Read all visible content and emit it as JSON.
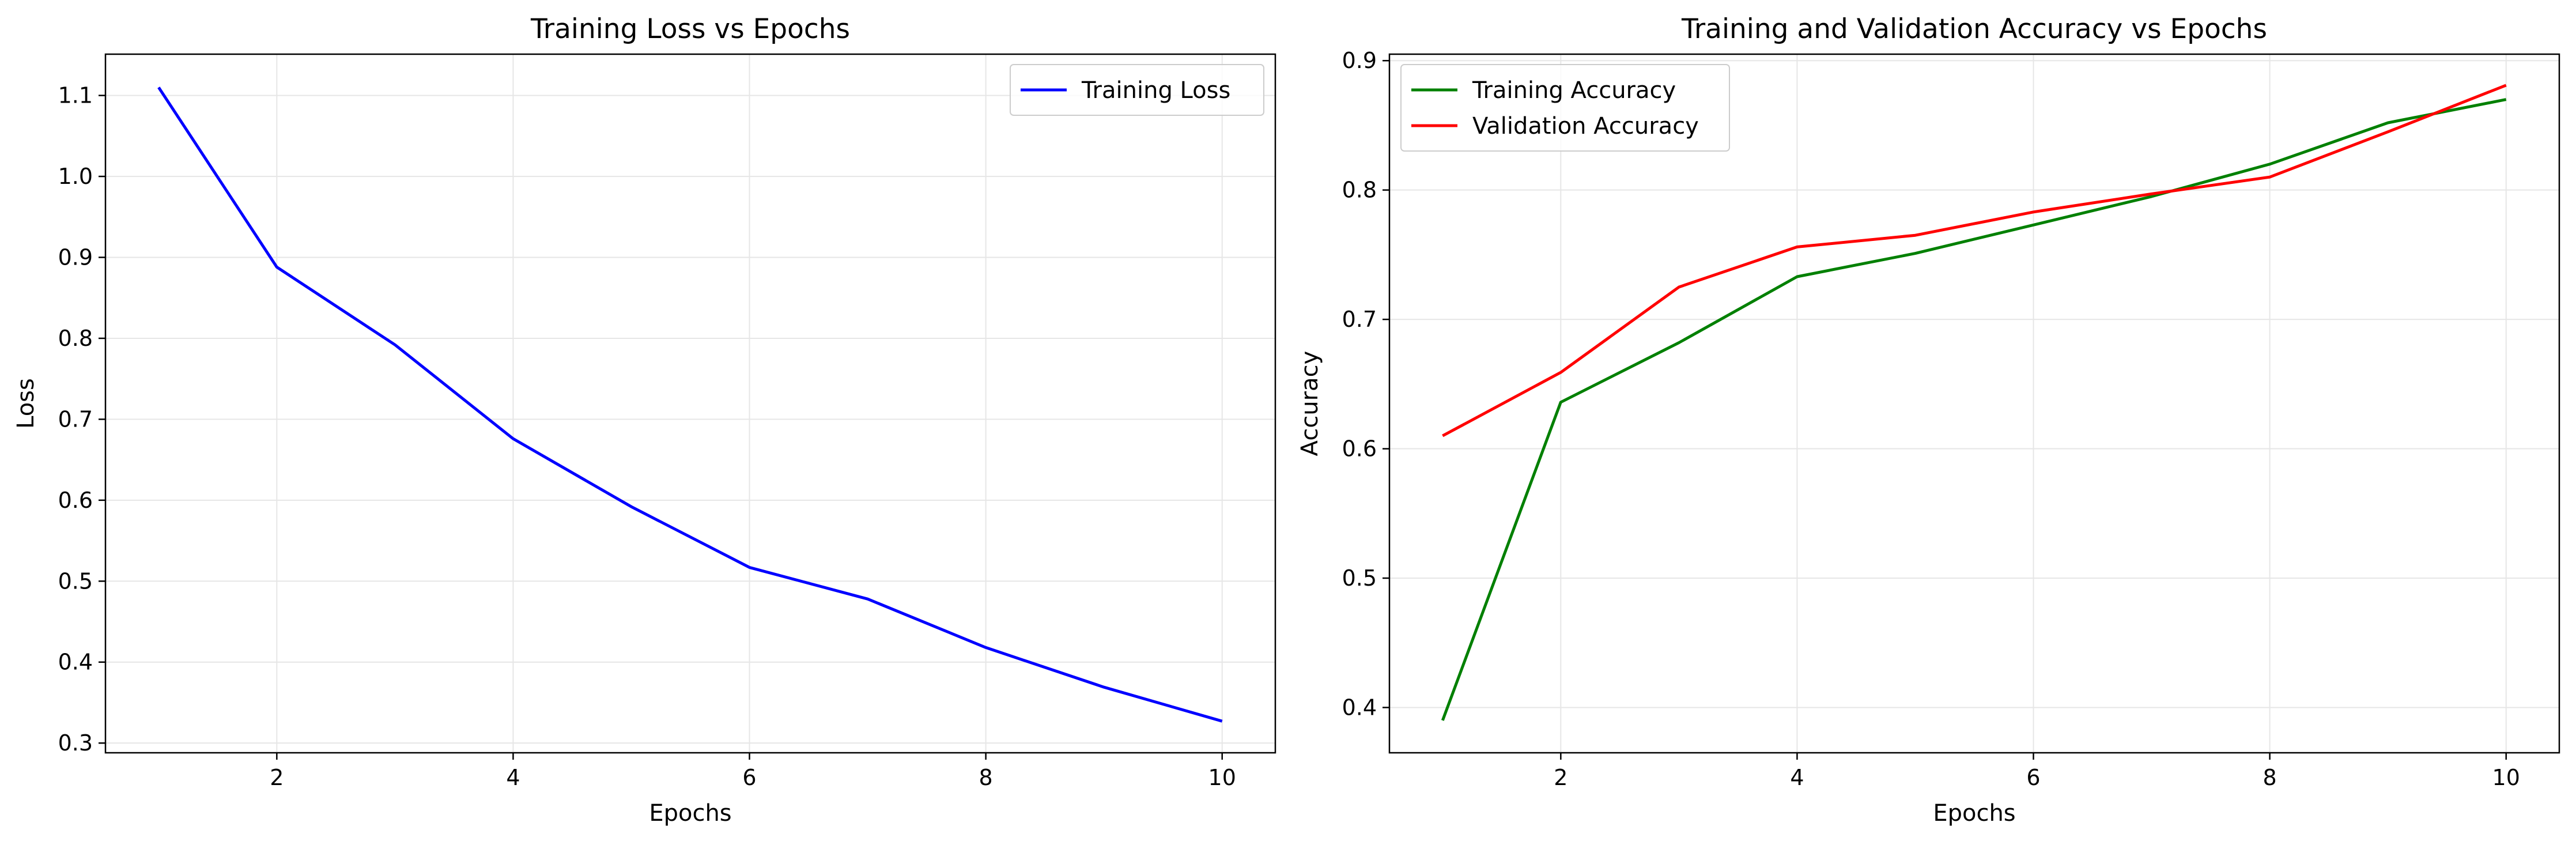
{
  "chart_data": [
    {
      "type": "line",
      "title": "Training Loss vs Epochs",
      "xlabel": "Epochs",
      "ylabel": "Loss",
      "xlim": [
        0.55,
        10.45
      ],
      "ylim": [
        0.288,
        1.151
      ],
      "xticks": [
        2,
        4,
        6,
        8,
        10
      ],
      "yticks": [
        0.3,
        0.4,
        0.5,
        0.6,
        0.7,
        0.8,
        0.9,
        1.0,
        1.1
      ],
      "grid": true,
      "legend_position": "upper right",
      "x": [
        1,
        2,
        3,
        4,
        5,
        6,
        7,
        8,
        9,
        10
      ],
      "series": [
        {
          "name": "Training Loss",
          "color": "#0000ff",
          "values": [
            1.11,
            0.888,
            0.792,
            0.676,
            0.592,
            0.517,
            0.478,
            0.418,
            0.369,
            0.327
          ]
        }
      ]
    },
    {
      "type": "line",
      "title": "Training and Validation Accuracy vs Epochs",
      "xlabel": "Epochs",
      "ylabel": "Accuracy",
      "xlim": [
        0.55,
        10.45
      ],
      "ylim": [
        0.365,
        0.905
      ],
      "xticks": [
        2,
        4,
        6,
        8,
        10
      ],
      "yticks": [
        0.4,
        0.5,
        0.6,
        0.7,
        0.8,
        0.9
      ],
      "grid": true,
      "legend_position": "upper left",
      "x": [
        1,
        2,
        3,
        4,
        5,
        6,
        7,
        8,
        9,
        10
      ],
      "series": [
        {
          "name": "Training Accuracy",
          "color": "#008000",
          "values": [
            0.39,
            0.636,
            0.682,
            0.733,
            0.751,
            0.773,
            0.795,
            0.82,
            0.852,
            0.87
          ]
        },
        {
          "name": "Validation Accuracy",
          "color": "#ff0000",
          "values": [
            0.61,
            0.659,
            0.725,
            0.756,
            0.765,
            0.783,
            0.797,
            0.81,
            0.845,
            0.881
          ]
        }
      ]
    }
  ]
}
